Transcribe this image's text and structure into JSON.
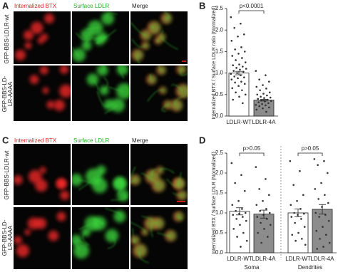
{
  "panel_labels": [
    "A",
    "B",
    "C",
    "D"
  ],
  "panel_a": {
    "column_headers": [
      "Internalized BTX",
      "Surface LDLR",
      "Merge"
    ],
    "row_labels": [
      [
        "GFP-BBS-LDLR-wt"
      ],
      [
        "GFP-BBS-LD-",
        "LR-AAAA"
      ]
    ]
  },
  "panel_c": {
    "column_headers": [
      "Internalized BTX",
      "Surface LDLR",
      "Merge"
    ],
    "row_labels": [
      [
        "GFP-BBS-LDLR-wt"
      ],
      [
        "GFP-BBS-LD-",
        "LR-AAAA"
      ]
    ]
  },
  "chart_data": [
    {
      "type": "bar",
      "ylabel": "Internalized BTX / Surface LDLR ratio (Normalized)",
      "annotation": "p<0.0001",
      "categories": [
        "LDLR-WT",
        "LDLR-4A"
      ],
      "values": [
        1.0,
        0.37
      ],
      "errors": [
        0.04,
        0.02
      ],
      "colors": [
        "#ffffff",
        "#8c8c8c"
      ],
      "points": [
        [
          2.3,
          2.15,
          2.05,
          1.9,
          1.85,
          1.75,
          1.6,
          1.55,
          1.5,
          1.45,
          1.4,
          1.35,
          1.3,
          1.25,
          1.2,
          1.18,
          1.15,
          1.12,
          1.1,
          1.08,
          1.05,
          1.03,
          1.0,
          0.98,
          0.95,
          0.92,
          0.9,
          0.88,
          0.85,
          0.8,
          0.78,
          0.75,
          0.7,
          0.65,
          0.6,
          0.55,
          0.5,
          0.45,
          0.38,
          0.3
        ],
        [
          1.05,
          0.95,
          0.85,
          0.8,
          0.72,
          0.68,
          0.64,
          0.6,
          0.55,
          0.52,
          0.5,
          0.48,
          0.45,
          0.43,
          0.42,
          0.4,
          0.38,
          0.36,
          0.35,
          0.34,
          0.32,
          0.3,
          0.28,
          0.26,
          0.25,
          0.23,
          0.2,
          0.18,
          0.15,
          0.1
        ]
      ],
      "ylim": [
        0,
        2.5
      ],
      "yticks": [
        {
          "value": 0,
          "label": "0.0"
        },
        0.5,
        {
          "value": 1,
          "label": "1.0"
        },
        1.5,
        {
          "value": 2,
          "label": "2.0"
        },
        2.5
      ]
    },
    {
      "type": "grouped_bar",
      "ylabel": "Internalized BTX / Surface LDLR (Normalized)",
      "groups": [
        "Soma",
        "Dendrites"
      ],
      "annotations": [
        "p>0.05",
        "p>0.05"
      ],
      "series": [
        {
          "name": "LDLR-WT",
          "color": "#ffffff",
          "values": [
            1.04,
            1.0
          ],
          "errors": [
            0.09,
            0.1
          ],
          "points": [
            [
              2.25,
              1.95,
              1.75,
              1.55,
              1.3,
              1.2,
              1.1,
              1.05,
              1.0,
              0.98,
              0.95,
              0.9,
              0.85,
              0.8,
              0.7,
              0.6,
              0.5,
              0.4,
              0.3,
              0.15
            ],
            [
              2.3,
              2.05,
              1.7,
              1.45,
              1.3,
              1.2,
              1.1,
              1.0,
              0.98,
              0.95,
              0.9,
              0.85,
              0.75,
              0.65,
              0.5,
              0.45,
              0.35,
              0.3,
              0.2
            ]
          ]
        },
        {
          "name": "LDLR-4A",
          "color": "#8c8c8c",
          "values": [
            0.97,
            1.09
          ],
          "errors": [
            0.1,
            0.12
          ],
          "points": [
            [
              2.15,
              1.85,
              1.6,
              1.45,
              1.3,
              1.2,
              1.1,
              1.05,
              1.0,
              0.95,
              0.9,
              0.85,
              0.75,
              0.7,
              0.6,
              0.5,
              0.4,
              0.25
            ],
            [
              2.35,
              2.3,
              2.2,
              2.0,
              1.75,
              1.6,
              1.45,
              1.35,
              1.25,
              1.15,
              1.0,
              0.95,
              0.9,
              0.8,
              0.65,
              0.55,
              0.45,
              0.35,
              0.25,
              0.15,
              0.1
            ]
          ]
        }
      ],
      "ylim": [
        0,
        2.5
      ],
      "yticks": [
        {
          "value": 0,
          "label": "0.0"
        },
        0.5,
        {
          "value": 1,
          "label": "1.0"
        },
        1.5,
        {
          "value": 2,
          "label": "2.0"
        },
        2.5
      ]
    }
  ]
}
